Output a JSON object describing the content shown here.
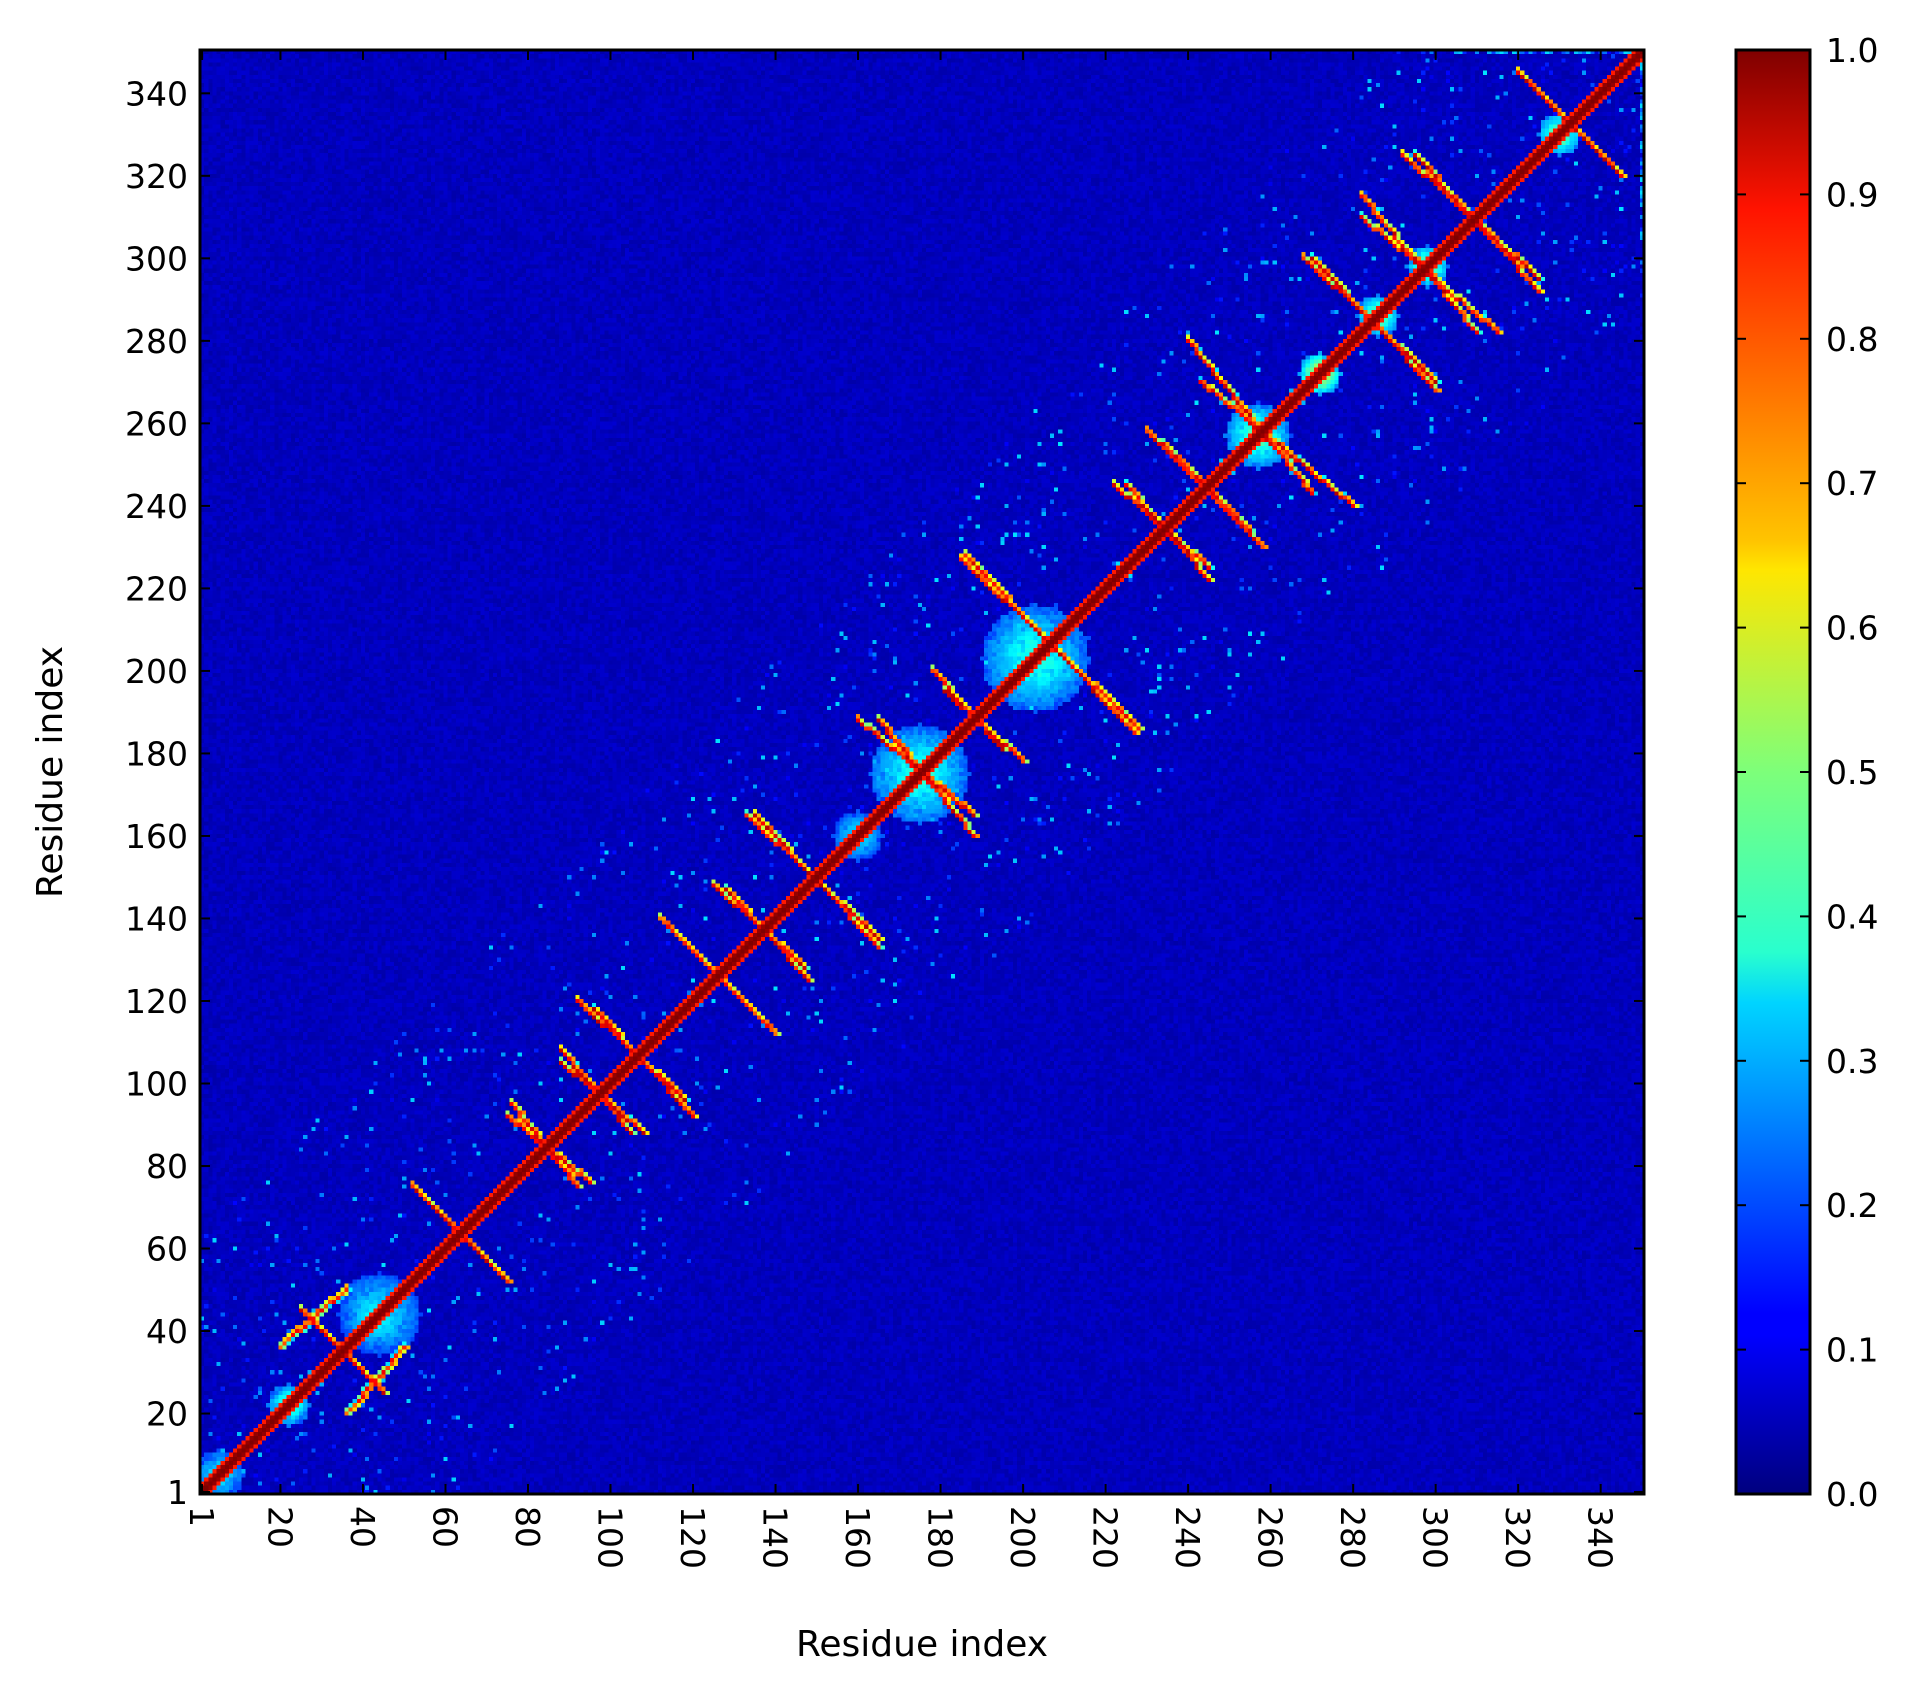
{
  "chart_data": {
    "type": "heatmap",
    "title": "",
    "xlabel": "Residue index",
    "ylabel": "Residue index",
    "n_residues": 350,
    "xlim": [
      1,
      350
    ],
    "ylim": [
      1,
      350
    ],
    "x_ticks": [
      "1",
      "20",
      "40",
      "60",
      "80",
      "100",
      "120",
      "140",
      "160",
      "180",
      "200",
      "220",
      "240",
      "260",
      "280",
      "300",
      "320",
      "340"
    ],
    "y_ticks": [
      "1",
      "20",
      "40",
      "60",
      "80",
      "100",
      "120",
      "140",
      "160",
      "180",
      "200",
      "220",
      "240",
      "260",
      "280",
      "300",
      "320",
      "340"
    ],
    "x_tick_rotation": 90,
    "colormap": "jet",
    "colorbar": {
      "range": [
        0.0,
        1.0
      ],
      "ticks": [
        "0.0",
        "0.1",
        "0.2",
        "0.3",
        "0.4",
        "0.5",
        "0.6",
        "0.7",
        "0.8",
        "0.9",
        "1.0"
      ]
    },
    "matrix_description": "symmetric contact probability map; diagonal = 1.0",
    "secondary_structure_bands": [
      {
        "from": [
          25,
          45
        ],
        "to": [
          45,
          25
        ],
        "value": 0.95
      },
      {
        "from": [
          36,
          20
        ],
        "to": [
          50,
          36
        ],
        "value": 0.9
      },
      {
        "from": [
          57,
          70
        ],
        "to": [
          75,
          52
        ],
        "value": 0.95
      },
      {
        "from": [
          76,
          95
        ],
        "to": [
          92,
          75
        ],
        "value": 0.95
      },
      {
        "from": [
          88,
          105
        ],
        "to": [
          108,
          88
        ],
        "value": 0.95
      },
      {
        "from": [
          96,
          118
        ],
        "to": [
          120,
          92
        ],
        "value": 0.95
      },
      {
        "from": [
          117,
          135
        ],
        "to": [
          140,
          112
        ],
        "value": 0.9
      },
      {
        "from": [
          128,
          147
        ],
        "to": [
          148,
          125
        ],
        "value": 0.95
      },
      {
        "from": [
          133,
          165
        ],
        "to": [
          165,
          135
        ],
        "value": 0.95
      },
      {
        "from": [
          165,
          188
        ],
        "to": [
          188,
          160
        ],
        "value": 0.95
      },
      {
        "from": [
          181,
          195
        ],
        "to": [
          200,
          178
        ],
        "value": 0.95
      },
      {
        "from": [
          186,
          228
        ],
        "to": [
          227,
          185
        ],
        "value": 0.95
      },
      {
        "from": [
          225,
          245
        ],
        "to": [
          245,
          222
        ],
        "value": 0.95
      },
      {
        "from": [
          234,
          255
        ],
        "to": [
          258,
          230
        ],
        "value": 0.95
      },
      {
        "from": [
          243,
          270
        ],
        "to": [
          280,
          240
        ],
        "value": 0.95
      },
      {
        "from": [
          270,
          300
        ],
        "to": [
          300,
          268
        ],
        "value": 0.95
      },
      {
        "from": [
          282,
          310
        ],
        "to": [
          315,
          282
        ],
        "value": 0.95
      },
      {
        "from": [
          295,
          325
        ],
        "to": [
          325,
          292
        ],
        "value": 0.95
      },
      {
        "from": [
          320,
          345
        ],
        "to": [
          345,
          320
        ],
        "value": 0.95
      }
    ],
    "domain_blobs": [
      {
        "center": [
          44,
          44
        ],
        "radius": 10,
        "value": 0.35
      },
      {
        "center": [
          175,
          175
        ],
        "radius": 12,
        "value": 0.4
      },
      {
        "center": [
          203,
          203
        ],
        "radius": 13,
        "value": 0.4
      },
      {
        "center": [
          257,
          257
        ],
        "radius": 8,
        "value": 0.45
      },
      {
        "center": [
          160,
          160
        ],
        "radius": 6,
        "value": 0.35
      },
      {
        "center": [
          5,
          5
        ],
        "radius": 6,
        "value": 0.35
      },
      {
        "center": [
          22,
          22
        ],
        "radius": 5,
        "value": 0.45
      },
      {
        "center": [
          272,
          272
        ],
        "radius": 5,
        "value": 0.6
      },
      {
        "center": [
          286,
          286
        ],
        "radius": 5,
        "value": 0.5
      },
      {
        "center": [
          298,
          298
        ],
        "radius": 5,
        "value": 0.5
      },
      {
        "center": [
          330,
          330
        ],
        "radius": 5,
        "value": 0.5
      }
    ]
  }
}
